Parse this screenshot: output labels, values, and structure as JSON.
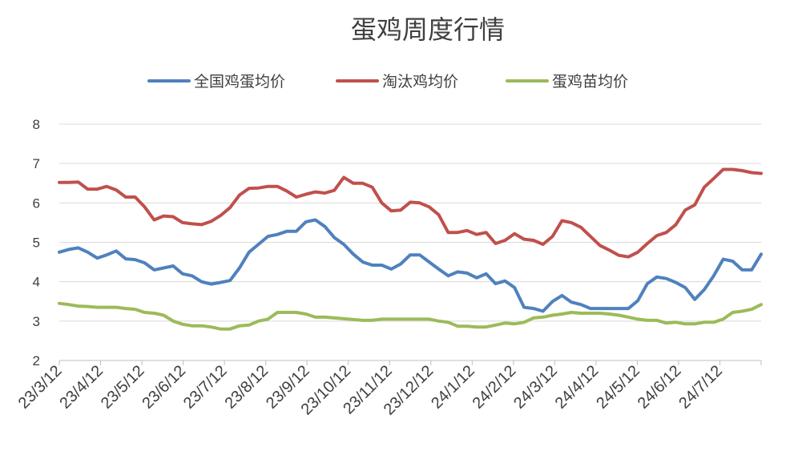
{
  "chart_data": {
    "type": "line",
    "title": "蛋鸡周度行情",
    "xlabel": "",
    "ylabel": "",
    "ylim": [
      2,
      8
    ],
    "yticks": [
      "2",
      "3",
      "4",
      "5",
      "6",
      "7",
      "8"
    ],
    "grid": true,
    "legend_position": "top",
    "x_tick_labels": [
      "23/3/12",
      "23/4/12",
      "23/5/12",
      "23/6/12",
      "23/7/12",
      "23/8/12",
      "23/9/12",
      "23/10/12",
      "23/11/12",
      "23/12/12",
      "24/1/12",
      "24/2/12",
      "24/3/12",
      "24/4/12",
      "24/5/12",
      "24/6/12",
      "24/7/12"
    ],
    "series": [
      {
        "name": "全国鸡蛋均价",
        "color": "#4f81bd",
        "values": [
          4.75,
          4.82,
          4.86,
          4.75,
          4.6,
          4.68,
          4.78,
          4.58,
          4.56,
          4.48,
          4.3,
          4.35,
          4.4,
          4.2,
          4.15,
          4.0,
          3.94,
          3.98,
          4.03,
          4.35,
          4.75,
          4.95,
          5.15,
          5.2,
          5.28,
          5.28,
          5.52,
          5.57,
          5.4,
          5.12,
          4.95,
          4.7,
          4.5,
          4.42,
          4.42,
          4.32,
          4.45,
          4.68,
          4.68,
          4.5,
          4.32,
          4.15,
          4.25,
          4.22,
          4.1,
          4.2,
          3.95,
          4.02,
          3.85,
          3.35,
          3.32,
          3.25,
          3.5,
          3.65,
          3.48,
          3.42,
          3.32,
          3.32,
          3.32,
          3.32,
          3.32,
          3.52,
          3.95,
          4.12,
          4.08,
          3.98,
          3.85,
          3.55,
          3.8,
          4.15,
          4.57,
          4.52,
          4.3,
          4.3,
          4.7
        ]
      },
      {
        "name": "淘汰鸡均价",
        "color": "#c0504d",
        "values": [
          6.52,
          6.52,
          6.53,
          6.35,
          6.35,
          6.42,
          6.33,
          6.15,
          6.15,
          5.9,
          5.57,
          5.67,
          5.65,
          5.5,
          5.47,
          5.45,
          5.53,
          5.68,
          5.88,
          6.2,
          6.37,
          6.38,
          6.42,
          6.42,
          6.3,
          6.15,
          6.22,
          6.28,
          6.25,
          6.32,
          6.65,
          6.5,
          6.5,
          6.4,
          6.0,
          5.8,
          5.82,
          6.02,
          6.0,
          5.9,
          5.7,
          5.25,
          5.25,
          5.3,
          5.2,
          5.25,
          4.97,
          5.05,
          5.22,
          5.08,
          5.05,
          4.95,
          5.15,
          5.55,
          5.5,
          5.38,
          5.15,
          4.92,
          4.8,
          4.67,
          4.63,
          4.75,
          4.97,
          5.17,
          5.25,
          5.45,
          5.82,
          5.95,
          6.4,
          6.62,
          6.85,
          6.85,
          6.82,
          6.77,
          6.75
        ]
      },
      {
        "name": "蛋鸡苗均价",
        "color": "#9bbb59",
        "values": [
          3.45,
          3.42,
          3.38,
          3.37,
          3.35,
          3.35,
          3.35,
          3.32,
          3.3,
          3.22,
          3.2,
          3.15,
          3.0,
          2.92,
          2.88,
          2.88,
          2.85,
          2.8,
          2.8,
          2.88,
          2.9,
          3.0,
          3.05,
          3.22,
          3.22,
          3.22,
          3.18,
          3.1,
          3.1,
          3.08,
          3.06,
          3.04,
          3.02,
          3.02,
          3.05,
          3.05,
          3.05,
          3.05,
          3.05,
          3.05,
          3.0,
          2.97,
          2.87,
          2.87,
          2.85,
          2.85,
          2.9,
          2.95,
          2.93,
          2.97,
          3.08,
          3.1,
          3.15,
          3.18,
          3.22,
          3.2,
          3.2,
          3.2,
          3.18,
          3.15,
          3.1,
          3.05,
          3.02,
          3.02,
          2.95,
          2.97,
          2.93,
          2.93,
          2.97,
          2.97,
          3.05,
          3.22,
          3.25,
          3.3,
          3.42
        ]
      }
    ]
  }
}
